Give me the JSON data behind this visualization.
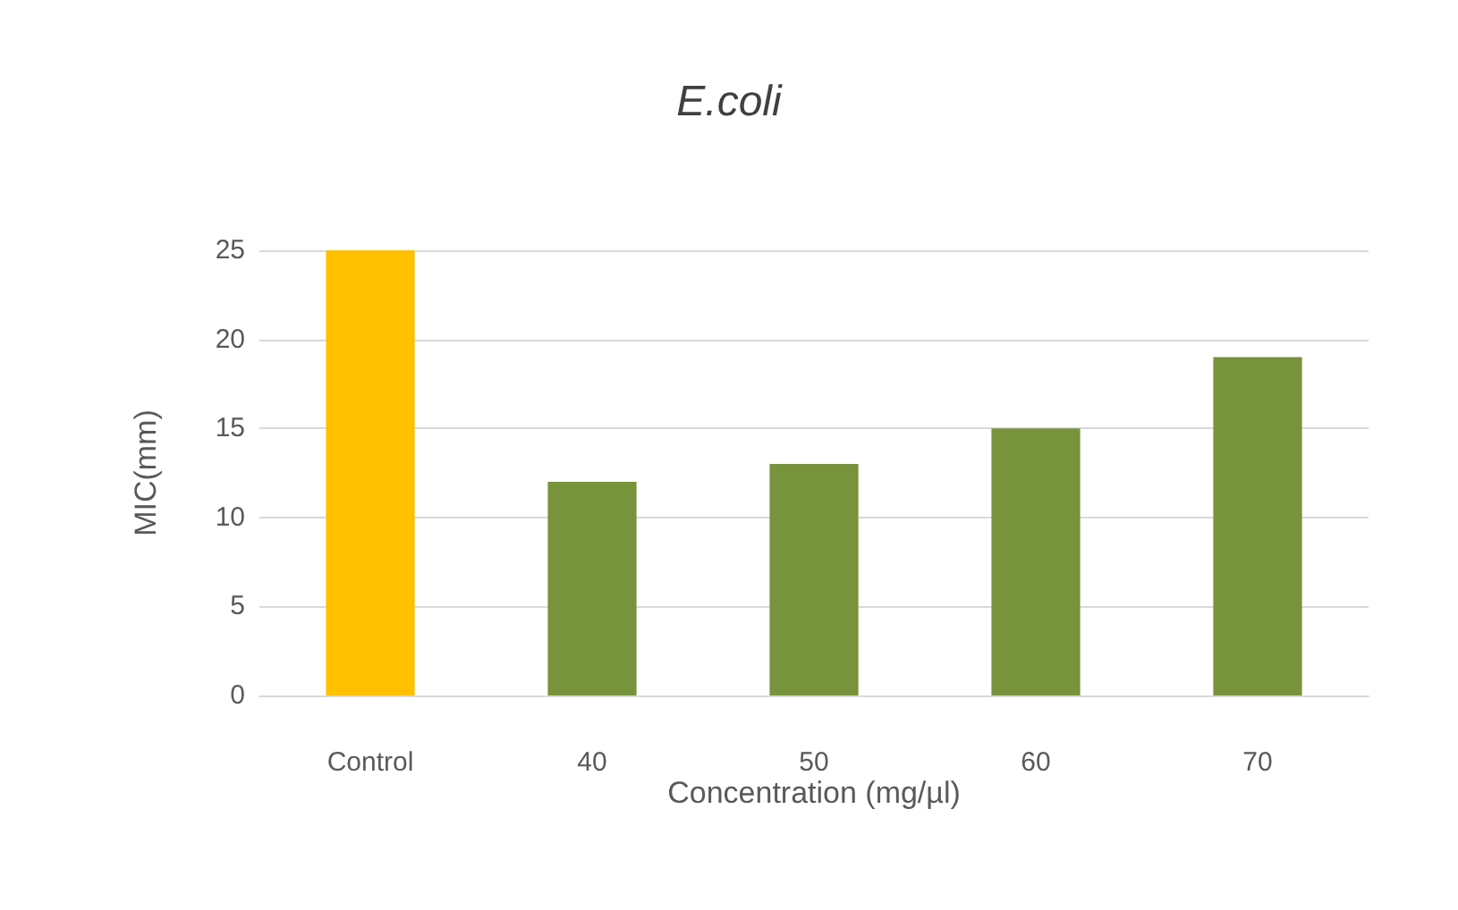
{
  "chart_data": {
    "type": "bar",
    "title": "E.coli",
    "xlabel": "Concentration (mg/µl)",
    "ylabel": "MIC(mm)",
    "categories": [
      "Control",
      "40",
      "50",
      "60",
      "70"
    ],
    "values": [
      25,
      12,
      13,
      15,
      19
    ],
    "colors": [
      "#ffc000",
      "#77933c",
      "#77933c",
      "#77933c",
      "#77933c"
    ],
    "ylim": [
      0,
      25
    ],
    "yticks": [
      0,
      5,
      10,
      15,
      20,
      25
    ],
    "grid": "y"
  }
}
